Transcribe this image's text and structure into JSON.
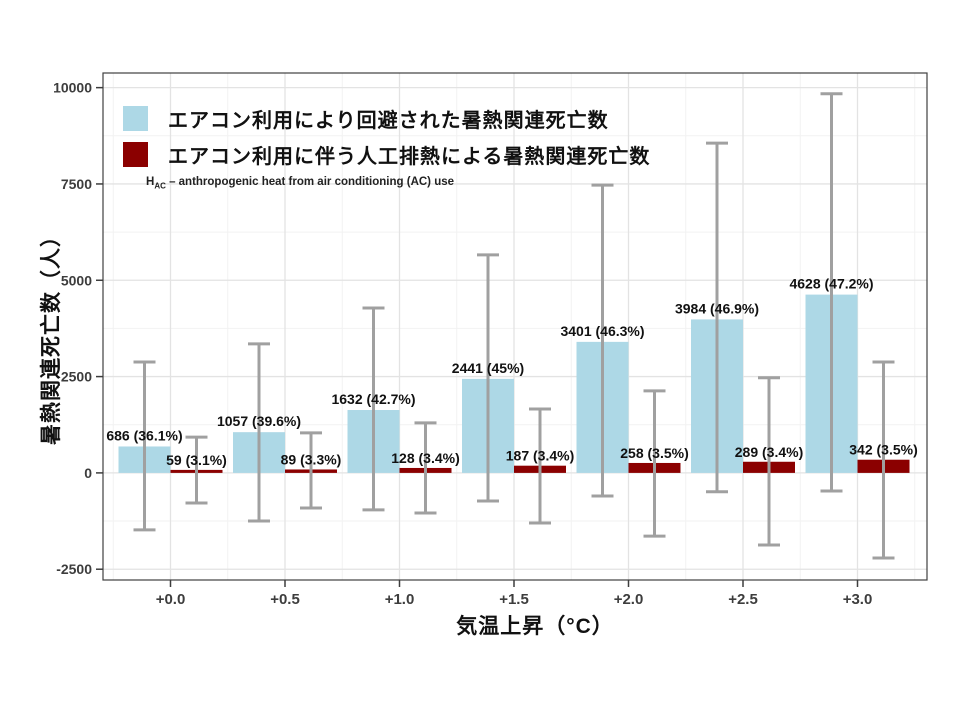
{
  "legend": {
    "items": [
      {
        "label": "エアコン利用により回避された暑熱関連死亡数",
        "color": "#ADD8E6"
      },
      {
        "label": "エアコン利用に伴う人工排熱による暑熱関連死亡数",
        "color": "#8B0000"
      }
    ],
    "note_prefix": "H",
    "note_sub": "AC",
    "note_rest": " – anthropogenic heat from air conditioning (AC) use"
  },
  "chart_data": {
    "type": "bar",
    "title": "",
    "xlabel": "気温上昇（°C）",
    "ylabel": "暑熱関連死亡数（人）",
    "categories": [
      "+0.0",
      "+0.5",
      "+1.0",
      "+1.5",
      "+2.0",
      "+2.5",
      "+3.0"
    ],
    "ylim": [
      -2780,
      10380
    ],
    "yticks": [
      -2500,
      0,
      2500,
      5000,
      7500,
      10000
    ],
    "grid": "major and minor gridlines, light gray on white, dark gray panel border",
    "legend_position": "top-left inside panel",
    "series": [
      {
        "name": "エアコン利用により回避された暑熱関連死亡数",
        "color": "#ADD8E6",
        "values": [
          686,
          1057,
          1632,
          2441,
          3401,
          3984,
          4628
        ],
        "labels": [
          "686 (36.1%)",
          "1057 (39.6%)",
          "1632 (42.7%)",
          "2441 (45%)",
          "3401 (46.3%)",
          "3984 (46.9%)",
          "4628 (47.2%)"
        ],
        "error_bars": [
          [
            -1480,
            2880
          ],
          [
            -1250,
            3350
          ],
          [
            -960,
            4280
          ],
          [
            -730,
            5660
          ],
          [
            -600,
            7470
          ],
          [
            -490,
            8560
          ],
          [
            -470,
            9840
          ]
        ]
      },
      {
        "name": "エアコン利用に伴う人工排熱による暑熱関連死亡数",
        "color": "#8B0000",
        "values": [
          59,
          89,
          128,
          187,
          258,
          289,
          342
        ],
        "labels": [
          "59 (3.1%)",
          "89 (3.3%)",
          "128 (3.4%)",
          "187 (3.4%)",
          "258 (3.5%)",
          "289 (3.4%)",
          "342 (3.5%)"
        ],
        "error_bars": [
          [
            -780,
            930
          ],
          [
            -910,
            1040
          ],
          [
            -1040,
            1300
          ],
          [
            -1300,
            1660
          ],
          [
            -1640,
            2130
          ],
          [
            -1870,
            2470
          ],
          [
            -2210,
            2880
          ]
        ]
      }
    ],
    "error_bar_color": "#A0A0A0",
    "axis_text_color": "#3d3d3d",
    "bar_label_color": "#111111"
  }
}
